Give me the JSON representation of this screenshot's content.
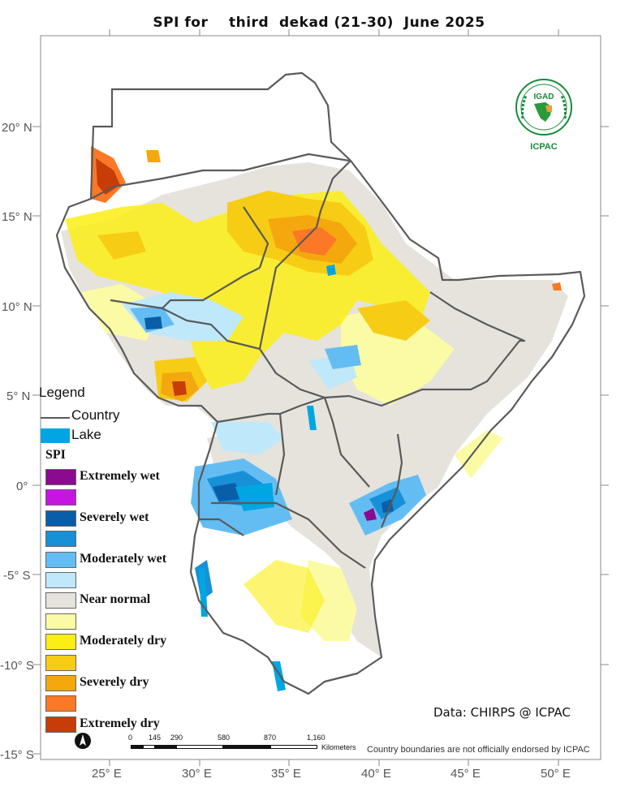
{
  "title": "SPI for    third  dekad (21-30)  June 2025",
  "axes": {
    "lat_labels": [
      "20° N",
      "15° N",
      "10° N",
      "5° N",
      "0°",
      "-5° S",
      "-10° S",
      "-15° S"
    ],
    "lon_labels": [
      "25° E",
      "30° E",
      "35° E",
      "40° E",
      "45° E",
      "50° E"
    ]
  },
  "legend": {
    "title": "Legend",
    "country_label": "Country",
    "lake_label": "Lake",
    "lake_color": "#00a6e2",
    "spi_title": "SPI",
    "classes": [
      {
        "label": "Extremely wet",
        "color": "#8b0a8f"
      },
      {
        "label": "",
        "color": "#c615e0"
      },
      {
        "label": "Severely wet",
        "color": "#0a5ea8"
      },
      {
        "label": "",
        "color": "#1890d8"
      },
      {
        "label": "Moderately wet",
        "color": "#64bdf2"
      },
      {
        "label": "",
        "color": "#bfe8fb"
      },
      {
        "label": "Near normal",
        "color": "#e5e3dc"
      },
      {
        "label": "",
        "color": "#fbfba6"
      },
      {
        "label": "Moderately dry",
        "color": "#fbee14"
      },
      {
        "label": "",
        "color": "#f7cc15"
      },
      {
        "label": "Severely dry",
        "color": "#f4a80e"
      },
      {
        "label": "",
        "color": "#fb7826"
      },
      {
        "label": "Extremely dry",
        "color": "#c83c08"
      }
    ]
  },
  "credit": "Data: CHIRPS @ ICPAC",
  "disclaimer": "Country boundaries are not officially endorsed by ICPAC",
  "scalebar": {
    "ticks": [
      "0",
      "145",
      "290",
      "580",
      "870",
      "1,160"
    ],
    "unit": "Kilometers"
  },
  "logo": {
    "top_text": "IGAD",
    "bottom_text": "ICPAC",
    "ring_text": "INTERGOVERNMENTAL AUTHORITY ON DEVELOPMENT"
  },
  "north_arrow": "north-arrow-icon"
}
